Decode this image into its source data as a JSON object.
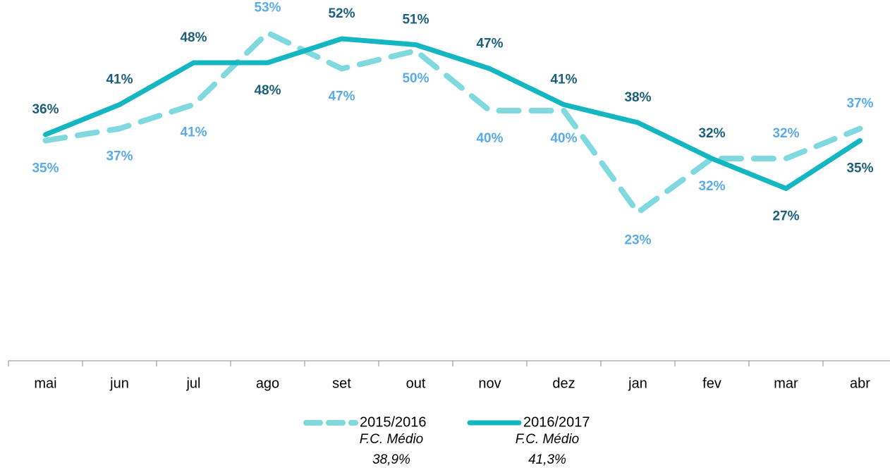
{
  "chart_data": {
    "type": "line",
    "categories": [
      "mai",
      "jun",
      "jul",
      "ago",
      "set",
      "out",
      "nov",
      "dez",
      "jan",
      "fev",
      "mar",
      "abr"
    ],
    "series": [
      {
        "name": "2015/2016",
        "color": "#7fd9de",
        "label_color": "#5aabe6",
        "dashed": true,
        "values": [
          35,
          37,
          41,
          53,
          47,
          50,
          40,
          40,
          23,
          32,
          32,
          37
        ],
        "value_labels": [
          "35%",
          "37%",
          "41%",
          "53%",
          "47%",
          "50%",
          "40%",
          "40%",
          "23%",
          "32%",
          "32%",
          "37%"
        ]
      },
      {
        "name": "2016/2017",
        "color": "#14b6c2",
        "label_color": "#1b5f7a",
        "dashed": false,
        "values": [
          36,
          41,
          48,
          48,
          52,
          51,
          47,
          41,
          38,
          32,
          27,
          35
        ],
        "value_labels": [
          "36%",
          "41%",
          "48%",
          "48%",
          "52%",
          "51%",
          "47%",
          "41%",
          "38%",
          "32%",
          "27%",
          "35%"
        ]
      }
    ],
    "legend_notes": [
      {
        "label": "F.C. Médio",
        "value": "38,9%"
      },
      {
        "label": "F.C. Médio",
        "value": "41,3%"
      }
    ],
    "ylim": [
      0,
      58
    ],
    "legend": "bottom"
  }
}
